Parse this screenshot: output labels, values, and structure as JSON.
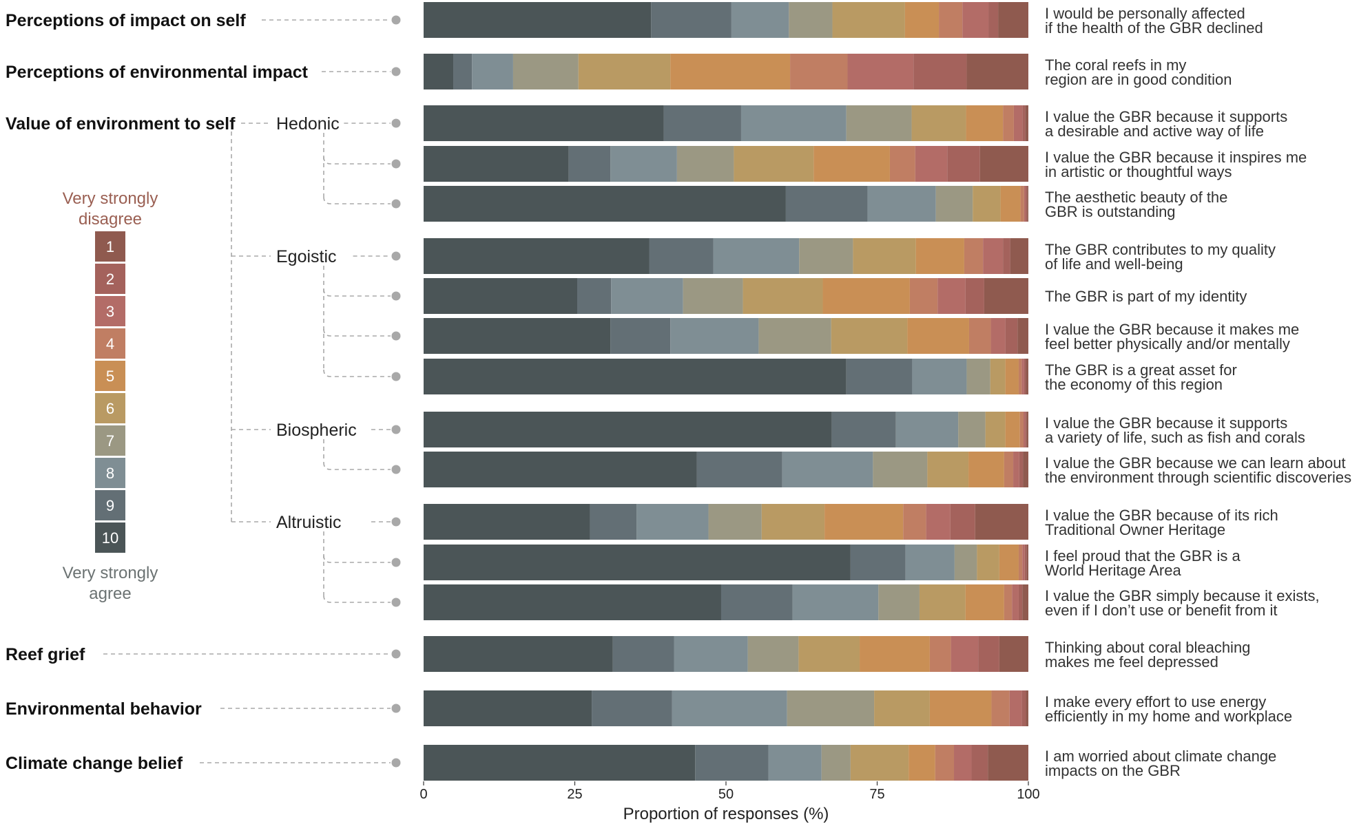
{
  "chart_data": {
    "type": "bar",
    "subtype": "stacked-horizontal-100",
    "xlabel": "Proportion of responses (%)",
    "xlim": [
      0,
      100
    ],
    "xticks": [
      0,
      25,
      50,
      75,
      100
    ],
    "legend": {
      "top_label_line1": "Very strongly",
      "top_label_line2": "disagree",
      "bottom_label_line1": "Very strongly",
      "bottom_label_line2": "agree",
      "levels": [
        "1",
        "2",
        "3",
        "4",
        "5",
        "6",
        "7",
        "8",
        "9",
        "10"
      ],
      "top_color": "#9a5f52",
      "bottom_color": "#6b7272"
    },
    "level_colors": {
      "1": "#8f5a4f",
      "2": "#a4625c",
      "3": "#b36c67",
      "4": "#c07e63",
      "5": "#c98f55",
      "6": "#b99a63",
      "7": "#9b9883",
      "8": "#7f8e94",
      "9": "#636f75",
      "10": "#4b5557"
    },
    "stack_order": [
      "10",
      "9",
      "8",
      "7",
      "6",
      "5",
      "4",
      "3",
      "2",
      "1"
    ],
    "groups": [
      {
        "category": "Perceptions of impact on self",
        "sub": ""
      },
      {
        "category": "Perceptions of environmental impact",
        "sub": ""
      },
      {
        "category": "Value of environment to self",
        "sub": "Hedonic"
      },
      {
        "category": "",
        "sub": "Egoistic"
      },
      {
        "category": "",
        "sub": "Biospheric"
      },
      {
        "category": "",
        "sub": "Altruistic"
      },
      {
        "category": "Reef grief",
        "sub": ""
      },
      {
        "category": "Environmental behavior",
        "sub": ""
      },
      {
        "category": "Climate change belief",
        "sub": ""
      }
    ],
    "series_rows": [
      {
        "line1": "I would be personally affected",
        "line2": "if the health of the GBR declined",
        "values": [
          37.6,
          13.3,
          9.5,
          7.2,
          12.0,
          5.6,
          3.9,
          4.3,
          1.6,
          5.0
        ]
      },
      {
        "line1": "The coral reefs in my",
        "line2": "region are in good condition",
        "values": [
          4.9,
          3.1,
          6.8,
          10.8,
          15.2,
          19.8,
          9.5,
          10.9,
          8.8,
          10.2
        ]
      },
      {
        "line1": "I value the GBR because it supports",
        "line2": "a desirable and active way of life",
        "values": [
          39.7,
          12.8,
          17.4,
          10.8,
          9.0,
          6.1,
          1.8,
          1.4,
          0.5,
          0.5
        ]
      },
      {
        "line1": "I value the GBR because it inspires me",
        "line2": "in artistic or thoughtful ways",
        "values": [
          24.0,
          6.9,
          11.0,
          9.4,
          13.2,
          12.6,
          4.2,
          5.3,
          5.4,
          8.0
        ]
      },
      {
        "line1": "The aesthetic beauty of the",
        "line2": "GBR is outstanding",
        "values": [
          59.9,
          13.5,
          11.3,
          6.1,
          4.6,
          3.3,
          0.6,
          0.3,
          0.2,
          0.2
        ]
      },
      {
        "line1": "The GBR contributes to my quality",
        "line2": "of life and well-being",
        "values": [
          37.3,
          10.6,
          14.2,
          8.9,
          10.4,
          8.0,
          3.1,
          3.3,
          1.2,
          3.0
        ]
      },
      {
        "line1": "The GBR is part of my identity",
        "line2": "",
        "values": [
          25.4,
          5.6,
          11.9,
          9.9,
          13.2,
          14.4,
          4.6,
          4.6,
          3.1,
          7.3
        ]
      },
      {
        "line1": "I value the GBR because it makes me",
        "line2": "feel better physically and/or mentally",
        "values": [
          30.9,
          9.9,
          14.6,
          12.0,
          12.6,
          10.2,
          3.6,
          2.4,
          2.0,
          1.8
        ]
      },
      {
        "line1": "The GBR is a great asset for",
        "line2": "the economy of this region",
        "values": [
          69.9,
          10.9,
          9.0,
          3.9,
          2.5,
          2.2,
          0.5,
          0.4,
          0.3,
          0.4
        ]
      },
      {
        "line1": "I value the GBR because it supports",
        "line2": "a variety of life, such as fish and corals",
        "values": [
          67.5,
          10.6,
          10.3,
          4.5,
          3.3,
          2.4,
          0.6,
          0.3,
          0.2,
          0.3
        ]
      },
      {
        "line1": "I value the GBR because we can learn about",
        "line2": "the environment through scientific discoveries",
        "values": [
          45.2,
          14.1,
          15.0,
          9.0,
          6.8,
          5.9,
          1.5,
          1.0,
          0.6,
          0.9
        ]
      },
      {
        "line1": "I value the GBR because of its rich",
        "line2": "Traditional Owner Heritage",
        "values": [
          27.5,
          7.7,
          11.9,
          8.8,
          10.4,
          13.0,
          3.8,
          4.0,
          4.1,
          8.8
        ]
      },
      {
        "line1": "I feel proud that the GBR is a",
        "line2": "World Heritage Area",
        "values": [
          70.6,
          9.1,
          8.1,
          3.7,
          3.7,
          3.2,
          0.6,
          0.4,
          0.3,
          0.3
        ]
      },
      {
        "line1": "I value the GBR simply because it exists,",
        "line2": "even if I don’t use or benefit from it",
        "values": [
          49.2,
          11.8,
          14.2,
          6.8,
          7.6,
          6.4,
          1.3,
          1.1,
          0.6,
          1.0
        ]
      },
      {
        "line1": "Thinking about coral bleaching",
        "line2": "makes me feel depressed",
        "values": [
          31.3,
          10.1,
          12.2,
          8.4,
          10.1,
          11.6,
          3.5,
          4.5,
          3.5,
          4.8
        ]
      },
      {
        "line1": "I make every effort to use energy",
        "line2": "efficiently in my home and workplace",
        "values": [
          27.8,
          13.3,
          19.0,
          14.4,
          9.2,
          10.2,
          3.0,
          2.0,
          0.7,
          0.4
        ]
      },
      {
        "line1": "I am worried about climate change",
        "line2": "impacts on the GBR",
        "values": [
          44.9,
          12.1,
          8.8,
          4.8,
          9.6,
          4.4,
          3.1,
          2.9,
          2.7,
          6.7
        ]
      }
    ]
  }
}
